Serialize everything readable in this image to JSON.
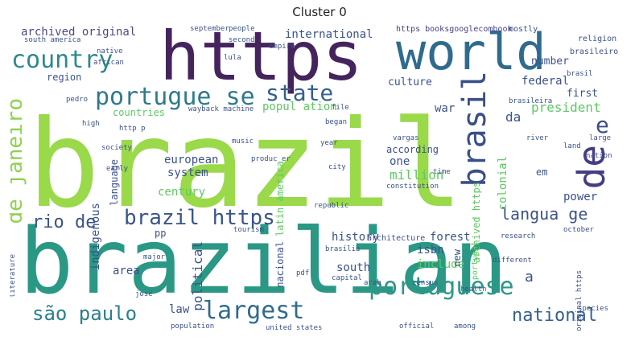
{
  "title": "Cluster 0",
  "colors": {
    "yellow_green": "#9ad94a",
    "green": "#4fbf6f",
    "teal": "#2a8c8a",
    "blue": "#345f8c",
    "indigo": "#433e84",
    "purple": "#45245e",
    "light": "#c7dd6f"
  },
  "words": [
    {
      "text": "brazil",
      "color": "#9ad94a"
    },
    {
      "text": "brazilian",
      "color": "#2a9885"
    },
    {
      "text": "https",
      "color": "#45245e"
    },
    {
      "text": "world",
      "color": "#2f6b8e"
    },
    {
      "text": "country",
      "color": "#2e8a8a"
    },
    {
      "text": "portugue se",
      "color": "#2f7a8c"
    },
    {
      "text": "state",
      "color": "#34608d"
    },
    {
      "text": "brasil",
      "color": "#3a4f89"
    },
    {
      "text": "de",
      "color": "#433e84"
    },
    {
      "text": "e",
      "color": "#3a4f89"
    },
    {
      "text": "de janeiro",
      "color": "#8fd24f"
    },
    {
      "text": "portuguese",
      "color": "#2d978a"
    },
    {
      "text": "são paulo",
      "color": "#2a7f8e"
    },
    {
      "text": "largest",
      "color": "#2f6b8e"
    },
    {
      "text": "national",
      "color": "#34608d"
    },
    {
      "text": "brazil https",
      "color": "#3a548b"
    },
    {
      "text": "rio de",
      "color": "#3b528b"
    },
    {
      "text": "langua ge",
      "color": "#3b528b"
    },
    {
      "text": "archived original",
      "color": "#4a4a8a"
    },
    {
      "text": "international",
      "color": "#3b528b"
    },
    {
      "text": "https booksgooglecombook",
      "color": "#433e84"
    },
    {
      "text": "region",
      "color": "#3b528b"
    },
    {
      "text": "culture",
      "color": "#3b528b"
    },
    {
      "text": "federal",
      "color": "#3b528b"
    },
    {
      "text": "number",
      "color": "#3b528b"
    },
    {
      "text": "popul ation",
      "color": "#5ec962"
    },
    {
      "text": "president",
      "color": "#5ec962"
    },
    {
      "text": "first",
      "color": "#3b528b"
    },
    {
      "text": "war",
      "color": "#3b528b"
    },
    {
      "text": "da",
      "color": "#3b528b"
    },
    {
      "text": "countries",
      "color": "#5ec962"
    },
    {
      "text": "european",
      "color": "#3b528b"
    },
    {
      "text": "system",
      "color": "#3b528b"
    },
    {
      "text": "indigenous",
      "color": "#3b528b"
    },
    {
      "text": "century",
      "color": "#5ec962"
    },
    {
      "text": "million",
      "color": "#5ec962"
    },
    {
      "text": "one",
      "color": "#3b528b"
    },
    {
      "text": "according",
      "color": "#3b528b"
    },
    {
      "text": "colonial",
      "color": "#5ec962"
    },
    {
      "text": "forest",
      "color": "#3b528b"
    },
    {
      "text": "power",
      "color": "#3b528b"
    },
    {
      "text": "history",
      "color": "#3b528b"
    },
    {
      "text": "south",
      "color": "#3b528b"
    },
    {
      "text": "include",
      "color": "#5ec962"
    },
    {
      "text": "isbn",
      "color": "#3b528b"
    },
    {
      "text": "area",
      "color": "#3b528b"
    },
    {
      "text": "political",
      "color": "#3b528b"
    },
    {
      "text": "nacional",
      "color": "#3b528b"
    },
    {
      "text": "law",
      "color": "#3b528b"
    },
    {
      "text": "em",
      "color": "#3b528b"
    },
    {
      "text": "language",
      "color": "#3b528b"
    },
    {
      "text": "latin america",
      "color": "#5ec962"
    },
    {
      "text": "archived https",
      "color": "#5ec962"
    },
    {
      "text": "portugal",
      "color": "#5ec962"
    },
    {
      "text": "pp",
      "color": "#3b528b"
    },
    {
      "text": "a",
      "color": "#3b528b"
    },
    {
      "text": "new",
      "color": "#3b528b"
    },
    {
      "text": "mostly",
      "color": "#3b528b"
    },
    {
      "text": "religion",
      "color": "#3b528b"
    },
    {
      "text": "brasileiro",
      "color": "#3b528b"
    },
    {
      "text": "september",
      "color": "#3b528b"
    },
    {
      "text": "people",
      "color": "#3b528b"
    },
    {
      "text": "south america",
      "color": "#3b528b"
    },
    {
      "text": "lula",
      "color": "#3b528b"
    },
    {
      "text": "native",
      "color": "#3b528b"
    },
    {
      "text": "african",
      "color": "#3b528b"
    },
    {
      "text": "second",
      "color": "#3b528b"
    },
    {
      "text": "empire",
      "color": "#3b528b"
    },
    {
      "text": "wayback machine",
      "color": "#3b528b"
    },
    {
      "text": "began",
      "color": "#3b528b"
    },
    {
      "text": "music",
      "color": "#3b528b"
    },
    {
      "text": "society",
      "color": "#3b528b"
    },
    {
      "text": "early",
      "color": "#3b528b"
    },
    {
      "text": "year",
      "color": "#3b528b"
    },
    {
      "text": "city",
      "color": "#3b528b"
    },
    {
      "text": "time",
      "color": "#3b528b"
    },
    {
      "text": "river",
      "color": "#3b528b"
    },
    {
      "text": "land",
      "color": "#3b528b"
    },
    {
      "text": "large",
      "color": "#3b528b"
    },
    {
      "text": "nation",
      "color": "#3b528b"
    },
    {
      "text": "constitution",
      "color": "#3b528b"
    },
    {
      "text": "republic",
      "color": "#3b528b"
    },
    {
      "text": "architecture",
      "color": "#3b528b"
    },
    {
      "text": "research",
      "color": "#3b528b"
    },
    {
      "text": "october",
      "color": "#3b528b"
    },
    {
      "text": "different",
      "color": "#3b528b"
    },
    {
      "text": "tourism",
      "color": "#3b528b"
    },
    {
      "text": "brasília",
      "color": "#3b528b"
    },
    {
      "text": "major",
      "color": "#3b528b"
    },
    {
      "text": "capital",
      "color": "#3b528b"
    },
    {
      "text": "arab",
      "color": "#3b528b"
    },
    {
      "text": "census",
      "color": "#3b528b"
    },
    {
      "text": "health",
      "color": "#3b528b"
    },
    {
      "text": "species",
      "color": "#3b528b"
    },
    {
      "text": "population",
      "color": "#3b528b"
    },
    {
      "text": "united states",
      "color": "#3b528b"
    },
    {
      "text": "official",
      "color": "#3b528b"
    },
    {
      "text": "among",
      "color": "#3b528b"
    },
    {
      "text": "literature",
      "color": "#3b528b"
    },
    {
      "text": "pdf",
      "color": "#3b528b"
    },
    {
      "text": "josé",
      "color": "#3b528b"
    },
    {
      "text": "original https",
      "color": "#3b528b"
    },
    {
      "text": "http p",
      "color": "#3b528b"
    },
    {
      "text": "produc er",
      "color": "#3b528b"
    },
    {
      "text": "pedro",
      "color": "#3b528b"
    },
    {
      "text": "high",
      "color": "#3b528b"
    },
    {
      "text": "brasileira",
      "color": "#3b528b"
    },
    {
      "text": "vargas",
      "color": "#3b528b"
    },
    {
      "text": "file",
      "color": "#3b528b"
    },
    {
      "text": "brasil",
      "color": "#3b528b"
    }
  ]
}
